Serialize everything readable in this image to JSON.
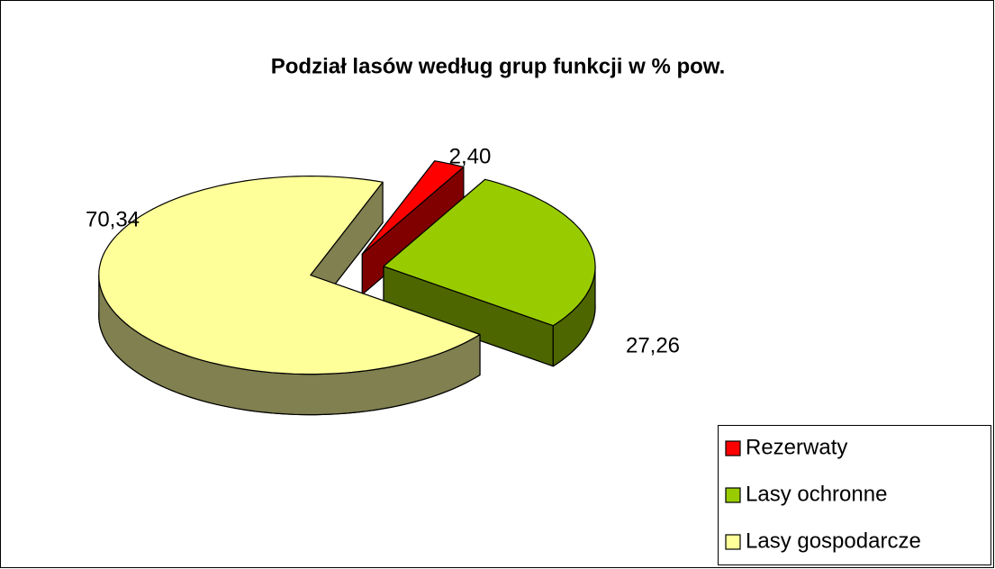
{
  "chart_data": {
    "type": "pie3d",
    "title": "Podział lasów według grup funkcji w % pow.",
    "categories": [
      "Rezerwaty",
      "Lasy ochronne",
      "Lasy gospodarcze"
    ],
    "values": [
      2.4,
      27.26,
      70.34
    ],
    "value_labels": [
      "2,40",
      "27,26",
      "70,34"
    ],
    "colors": [
      "#ff0000",
      "#99cc00",
      "#ffff99"
    ],
    "side_colors": [
      "#800000",
      "#4d6600",
      "#808050"
    ],
    "legend": "bottom-right"
  }
}
